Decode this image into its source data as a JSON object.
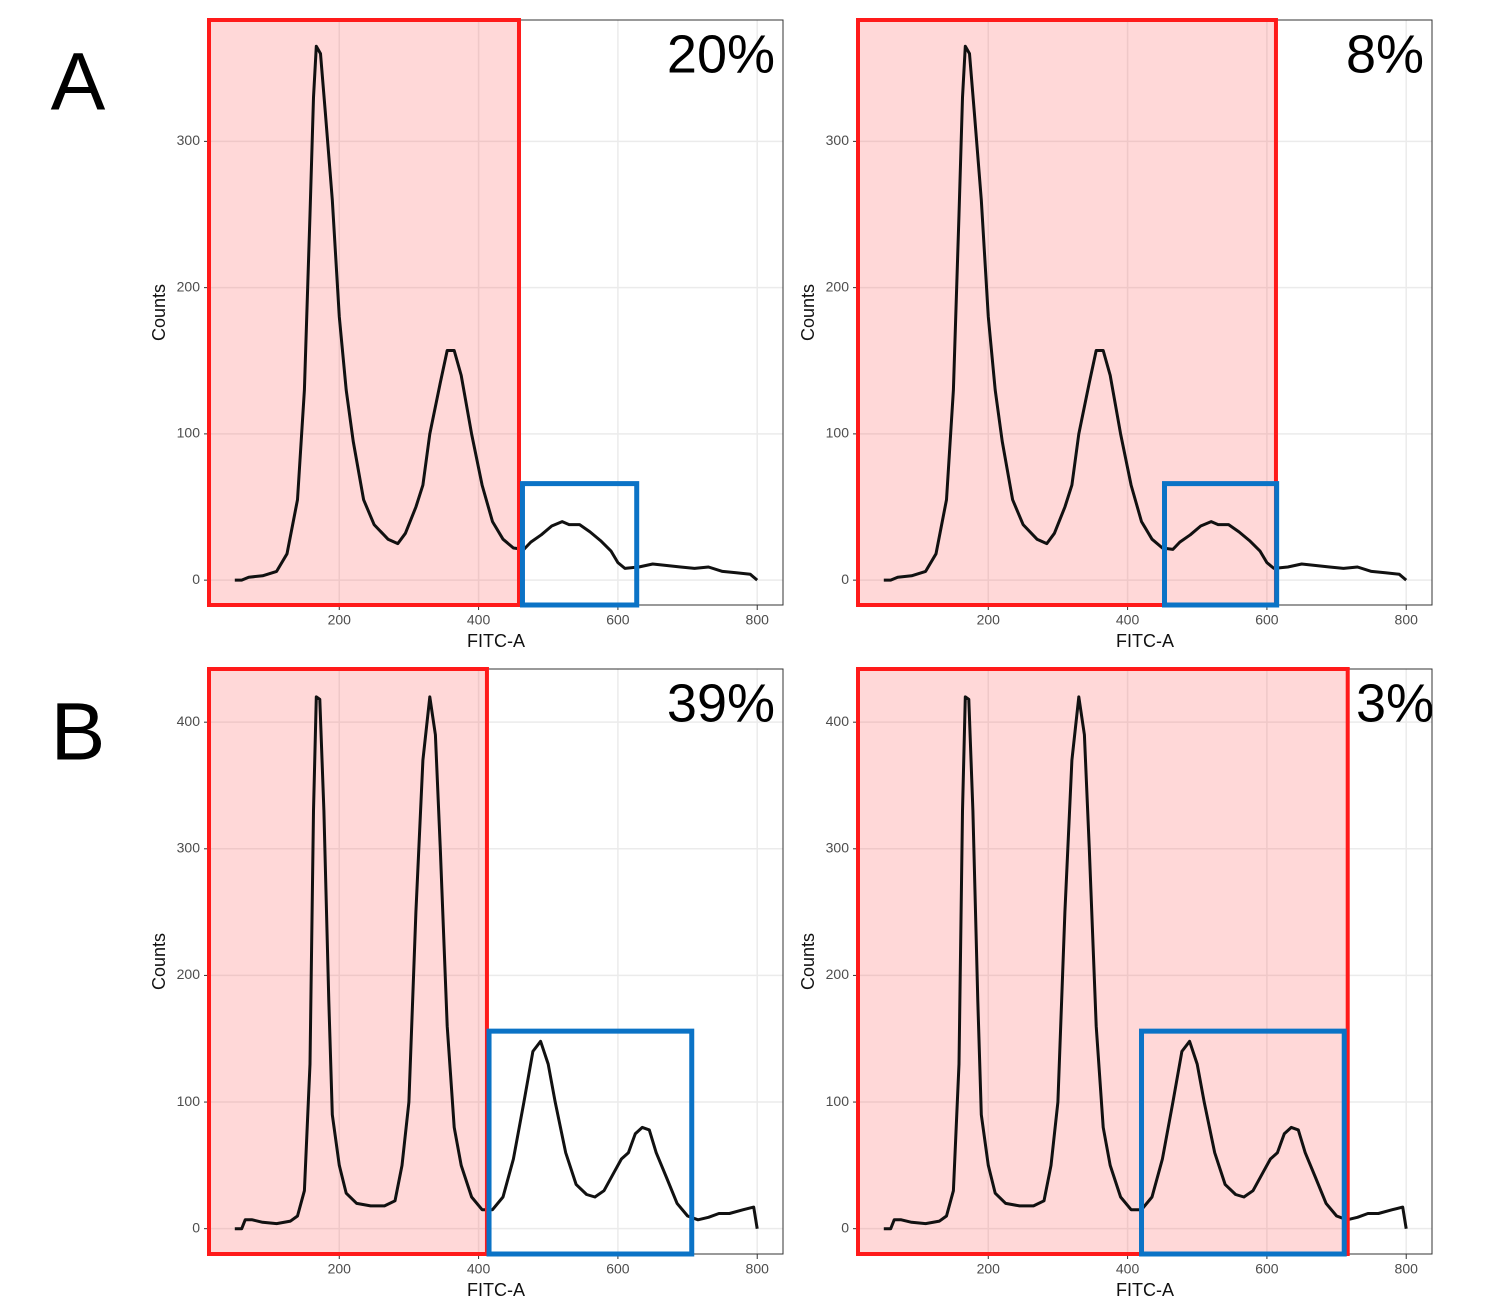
{
  "panel_labels": [
    "A",
    "B"
  ],
  "chart_data": [
    {
      "type": "line",
      "xlabel": "FITC-A",
      "ylabel": "Counts",
      "annotation": "20%",
      "x": [
        50,
        60,
        70,
        90,
        110,
        125,
        140,
        150,
        158,
        163,
        167,
        173,
        180,
        190,
        200,
        210,
        220,
        235,
        250,
        270,
        284,
        295,
        310,
        320,
        330,
        345,
        355,
        365,
        375,
        390,
        405,
        420,
        435,
        450,
        465,
        475,
        490,
        505,
        520,
        530,
        545,
        560,
        575,
        590,
        600,
        610,
        630,
        650,
        670,
        690,
        710,
        730,
        750,
        770,
        790,
        800
      ],
      "series": [
        {
          "color": "#111111",
          "values": [
            0,
            0,
            2,
            3,
            6,
            18,
            55,
            130,
            250,
            330,
            365,
            360,
            320,
            260,
            180,
            130,
            95,
            55,
            38,
            28,
            25,
            32,
            50,
            65,
            100,
            135,
            157,
            157,
            140,
            100,
            65,
            40,
            28,
            22,
            21,
            26,
            31,
            37,
            40,
            38,
            38,
            33,
            27,
            20,
            12,
            8,
            9,
            11,
            10,
            9,
            8,
            9,
            6,
            5,
            4,
            0
          ]
        }
      ],
      "xlim": [
        13,
        837
      ],
      "ylim": [
        -17,
        383
      ],
      "xticks": [
        200,
        400,
        600,
        800
      ],
      "yticks": [
        0,
        100,
        200,
        300
      ],
      "gates": [
        {
          "color": "#ff1a1a",
          "fill": "rgba(255,60,60,0.2)",
          "x": [
            13,
            458
          ],
          "y": [
            -17,
            383
          ]
        },
        {
          "color": "#0b73c6",
          "fill": "none",
          "x": [
            463,
            627
          ],
          "y": [
            -17,
            66
          ]
        }
      ]
    },
    {
      "type": "line",
      "xlabel": "FITC-A",
      "ylabel": "Counts",
      "annotation": "8%",
      "x": [
        50,
        60,
        70,
        90,
        110,
        125,
        140,
        150,
        158,
        163,
        167,
        173,
        180,
        190,
        200,
        210,
        220,
        235,
        250,
        270,
        284,
        295,
        310,
        320,
        330,
        345,
        355,
        365,
        375,
        390,
        405,
        420,
        435,
        450,
        465,
        475,
        490,
        505,
        520,
        530,
        545,
        560,
        575,
        590,
        600,
        610,
        630,
        650,
        670,
        690,
        710,
        730,
        750,
        770,
        790,
        800
      ],
      "series": [
        {
          "color": "#111111",
          "values": [
            0,
            0,
            2,
            3,
            6,
            18,
            55,
            130,
            250,
            330,
            365,
            360,
            320,
            260,
            180,
            130,
            95,
            55,
            38,
            28,
            25,
            32,
            50,
            65,
            100,
            135,
            157,
            157,
            140,
            100,
            65,
            40,
            28,
            22,
            21,
            26,
            31,
            37,
            40,
            38,
            38,
            33,
            27,
            20,
            12,
            8,
            9,
            11,
            10,
            9,
            8,
            9,
            6,
            5,
            4,
            0
          ]
        }
      ],
      "xlim": [
        13,
        837
      ],
      "ylim": [
        -17,
        383
      ],
      "xticks": [
        200,
        400,
        600,
        800
      ],
      "yticks": [
        0,
        100,
        200,
        300
      ],
      "gates": [
        {
          "color": "#ff1a1a",
          "fill": "rgba(255,60,60,0.2)",
          "x": [
            13,
            613
          ],
          "y": [
            -17,
            383
          ]
        },
        {
          "color": "#0b73c6",
          "fill": "none",
          "x": [
            453,
            614
          ],
          "y": [
            -17,
            66
          ]
        }
      ]
    },
    {
      "type": "line",
      "xlabel": "FITC-A",
      "ylabel": "Counts",
      "annotation": "39%",
      "x": [
        50,
        60,
        65,
        75,
        90,
        110,
        130,
        140,
        150,
        158,
        163,
        167,
        172,
        178,
        185,
        190,
        200,
        210,
        225,
        245,
        265,
        280,
        290,
        300,
        310,
        320,
        330,
        338,
        345,
        355,
        365,
        375,
        390,
        405,
        420,
        435,
        450,
        465,
        478,
        489,
        500,
        510,
        525,
        540,
        555,
        567,
        580,
        595,
        605,
        615,
        625,
        635,
        645,
        655,
        670,
        685,
        700,
        715,
        730,
        745,
        760,
        780,
        795,
        800
      ],
      "series": [
        {
          "color": "#111111",
          "values": [
            0,
            0,
            7,
            7,
            5,
            4,
            6,
            10,
            30,
            130,
            330,
            420,
            418,
            330,
            180,
            90,
            50,
            28,
            20,
            18,
            18,
            22,
            50,
            100,
            250,
            370,
            420,
            390,
            300,
            160,
            80,
            50,
            25,
            15,
            15,
            25,
            55,
            100,
            140,
            148,
            130,
            100,
            60,
            35,
            27,
            25,
            30,
            45,
            55,
            60,
            75,
            80,
            78,
            60,
            40,
            20,
            10,
            7,
            9,
            12,
            12,
            15,
            17,
            0
          ]
        }
      ],
      "xlim": [
        13,
        837
      ],
      "ylim": [
        -20,
        442
      ],
      "xticks": [
        200,
        400,
        600,
        800
      ],
      "yticks": [
        0,
        100,
        200,
        300,
        400
      ],
      "gates": [
        {
          "color": "#ff1a1a",
          "fill": "rgba(255,60,60,0.2)",
          "x": [
            13,
            412
          ],
          "y": [
            -20,
            442
          ]
        },
        {
          "color": "#0b73c6",
          "fill": "none",
          "x": [
            415,
            706
          ],
          "y": [
            -20,
            156
          ]
        }
      ]
    },
    {
      "type": "line",
      "xlabel": "FITC-A",
      "ylabel": "Counts",
      "annotation": "3%",
      "x": [
        50,
        60,
        65,
        75,
        90,
        110,
        130,
        140,
        150,
        158,
        163,
        167,
        172,
        178,
        185,
        190,
        200,
        210,
        225,
        245,
        265,
        280,
        290,
        300,
        310,
        320,
        330,
        338,
        345,
        355,
        365,
        375,
        390,
        405,
        420,
        435,
        450,
        465,
        478,
        489,
        500,
        510,
        525,
        540,
        555,
        567,
        580,
        595,
        605,
        615,
        625,
        635,
        645,
        655,
        670,
        685,
        700,
        715,
        730,
        745,
        760,
        780,
        795,
        800
      ],
      "series": [
        {
          "color": "#111111",
          "values": [
            0,
            0,
            7,
            7,
            5,
            4,
            6,
            10,
            30,
            130,
            330,
            420,
            418,
            330,
            180,
            90,
            50,
            28,
            20,
            18,
            18,
            22,
            50,
            100,
            250,
            370,
            420,
            390,
            300,
            160,
            80,
            50,
            25,
            15,
            15,
            25,
            55,
            100,
            140,
            148,
            130,
            100,
            60,
            35,
            27,
            25,
            30,
            45,
            55,
            60,
            75,
            80,
            78,
            60,
            40,
            20,
            10,
            7,
            9,
            12,
            12,
            15,
            17,
            0
          ]
        }
      ],
      "xlim": [
        13,
        837
      ],
      "ylim": [
        -20,
        442
      ],
      "xticks": [
        200,
        400,
        600,
        800
      ],
      "yticks": [
        0,
        100,
        200,
        300,
        400
      ],
      "gates": [
        {
          "color": "#ff1a1a",
          "fill": "rgba(255,60,60,0.2)",
          "x": [
            13,
            716
          ],
          "y": [
            -20,
            442
          ]
        },
        {
          "color": "#0b73c6",
          "fill": "none",
          "x": [
            420,
            711
          ],
          "y": [
            -20,
            156
          ]
        }
      ]
    }
  ]
}
